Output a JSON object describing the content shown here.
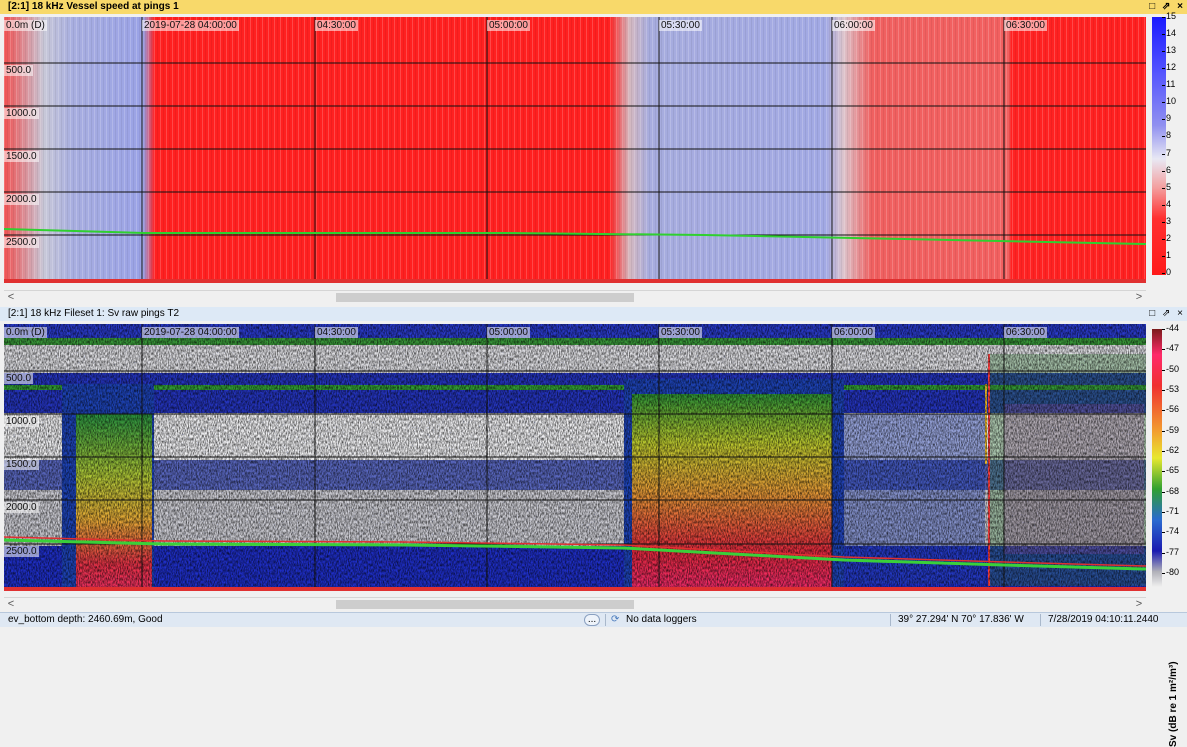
{
  "top_panel": {
    "title": "[2:1] 18 kHz Vessel speed at pings 1",
    "window_icons": "□ ⇗ ×",
    "time_labels": [
      "2019-07-28 04:00:00",
      "04:30:00",
      "05:00:00",
      "05:30:00",
      "06:00:00",
      "06:30:00"
    ],
    "depth_labels": [
      "0.0m (D)",
      "500.0",
      "1000.0",
      "1500.0",
      "2000.0",
      "2500.0"
    ],
    "colorbar_ticks": [
      "15",
      "14",
      "13",
      "12",
      "11",
      "10",
      "9",
      "8",
      "7",
      "6",
      "5",
      "4",
      "3",
      "2",
      "1",
      "0"
    ],
    "colors": {
      "low": "#ff1a1a",
      "mid": "#c6c6e6",
      "high": "#1a1aff",
      "bottom_line": "#2fd02f"
    }
  },
  "bottom_panel": {
    "title": "[2:1] 18 kHz Fileset 1: Sv raw pings T2",
    "window_icons": "□ ⇗ ×",
    "time_labels": [
      "2019-07-28 04:00:00",
      "04:30:00",
      "05:00:00",
      "05:30:00",
      "06:00:00",
      "06:30:00"
    ],
    "depth_labels": [
      "0.0m (D)",
      "500.0",
      "1000.0",
      "1500.0",
      "2000.0",
      "2500.0"
    ],
    "colorbar_ticks": [
      "-44",
      "-47",
      "-50",
      "-53",
      "-56",
      "-59",
      "-62",
      "-65",
      "-68",
      "-71",
      "-74",
      "-77",
      "-80"
    ],
    "colorbar_unit": "Sv (dB re 1 m²/m³)"
  },
  "scrollbar": {
    "left_arrow": "<",
    "right_arrow": ">"
  },
  "statusbar": {
    "bottom_depth": "ev_bottom depth: 2460.69m, Good",
    "ellipsis": "...",
    "loggers": "No data loggers",
    "position": "39° 27.294' N 70° 17.836' W",
    "timestamp": "7/28/2019 04:10:11.2440"
  }
}
